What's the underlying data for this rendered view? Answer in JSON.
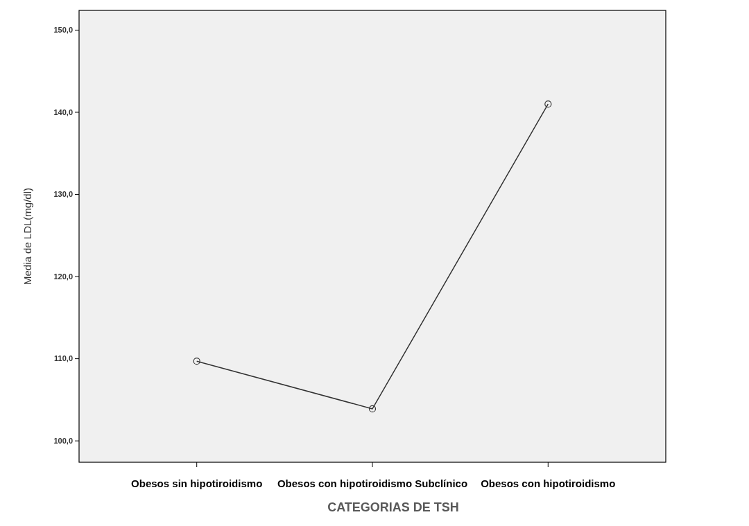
{
  "chart_data": {
    "type": "line",
    "xlabel": "CATEGORIAS DE TSH",
    "ylabel": "Media de LDL(mg/dl)",
    "categories": [
      "Obesos sin hipotiroidismo",
      "Obesos con hipotiroidismo Subclínico",
      "Obesos con hipotiroidismo"
    ],
    "series": [
      {
        "color": "#333333",
        "values": [
          109.7,
          103.9,
          141.0
        ]
      }
    ],
    "ylim": [
      97.4,
      152.4
    ],
    "yticks": [
      {
        "value": 100,
        "label": "100,0"
      },
      {
        "value": 110,
        "label": "110,0"
      },
      {
        "value": 120,
        "label": "120,0"
      },
      {
        "value": 130,
        "label": "130,0"
      },
      {
        "value": 140,
        "label": "140,0"
      },
      {
        "value": 150,
        "label": "150,0"
      }
    ],
    "marker": "circle",
    "line_style": "solid"
  }
}
